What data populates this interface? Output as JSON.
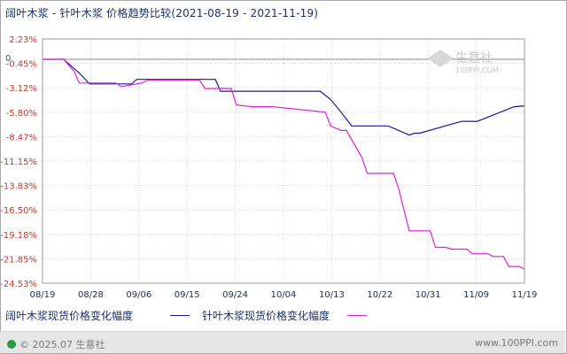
{
  "chart_data": {
    "type": "line",
    "title": "阔叶木浆 - 针叶木浆 价格趋势比较(2021-08-19 - 2021-11-19)",
    "xlabel": "",
    "ylabel": "",
    "x_ticks": [
      "08/19",
      "08/28",
      "09/06",
      "09/15",
      "09/24",
      "10/04",
      "10/13",
      "10/22",
      "10/31",
      "11/09",
      "11/19"
    ],
    "y_ticks": [
      "2.23%",
      "-0.45%",
      "-3.12%",
      "-5.80%",
      "-8.47%",
      "-11.15%",
      "-13.83%",
      "-16.50%",
      "-19.18%",
      "-21.85%",
      "-24.53%"
    ],
    "zero_label": "0",
    "ylim": [
      -24.53,
      2.23
    ],
    "xlim_days": [
      0,
      92
    ],
    "grid": true,
    "series": [
      {
        "name": "阔叶木浆现货价格变化幅度",
        "color": "#1a1a9a",
        "x": [
          0,
          4,
          6,
          7,
          9,
          17,
          18,
          33,
          34,
          53,
          55,
          57,
          59,
          66,
          70,
          71,
          72,
          80,
          83,
          90,
          92
        ],
        "y": [
          0,
          0,
          -1.0,
          -1.5,
          -2.7,
          -2.7,
          -2.2,
          -2.2,
          -3.5,
          -3.5,
          -4.4,
          -5.8,
          -7.3,
          -7.3,
          -8.3,
          -8.1,
          -8.1,
          -6.8,
          -6.8,
          -5.2,
          -5.1
        ]
      },
      {
        "name": "针叶木浆现货价格变化幅度",
        "color": "#e020d8",
        "x": [
          0,
          4,
          6,
          7,
          14,
          15,
          19,
          20,
          30,
          31,
          36,
          37,
          40,
          44,
          54,
          55,
          57,
          58,
          61,
          62,
          64,
          67,
          68,
          70,
          74,
          75,
          77,
          78,
          81,
          82,
          85,
          86,
          88,
          89,
          91,
          92
        ],
        "y": [
          0,
          0,
          -1.3,
          -2.6,
          -2.6,
          -3.0,
          -2.6,
          -2.3,
          -2.3,
          -3.2,
          -3.2,
          -5.0,
          -5.2,
          -5.2,
          -5.8,
          -7.3,
          -7.8,
          -7.8,
          -10.8,
          -12.5,
          -12.5,
          -12.5,
          -14.2,
          -18.8,
          -18.8,
          -20.6,
          -20.6,
          -20.8,
          -20.8,
          -21.3,
          -21.3,
          -21.6,
          -21.6,
          -22.7,
          -22.7,
          -23.0
        ]
      }
    ]
  },
  "watermark": {
    "brand": "生意社",
    "url": "100PPI.COM"
  },
  "footer": {
    "copyright": "© 2025.07 生意社",
    "site": "www.100PPI.com"
  }
}
